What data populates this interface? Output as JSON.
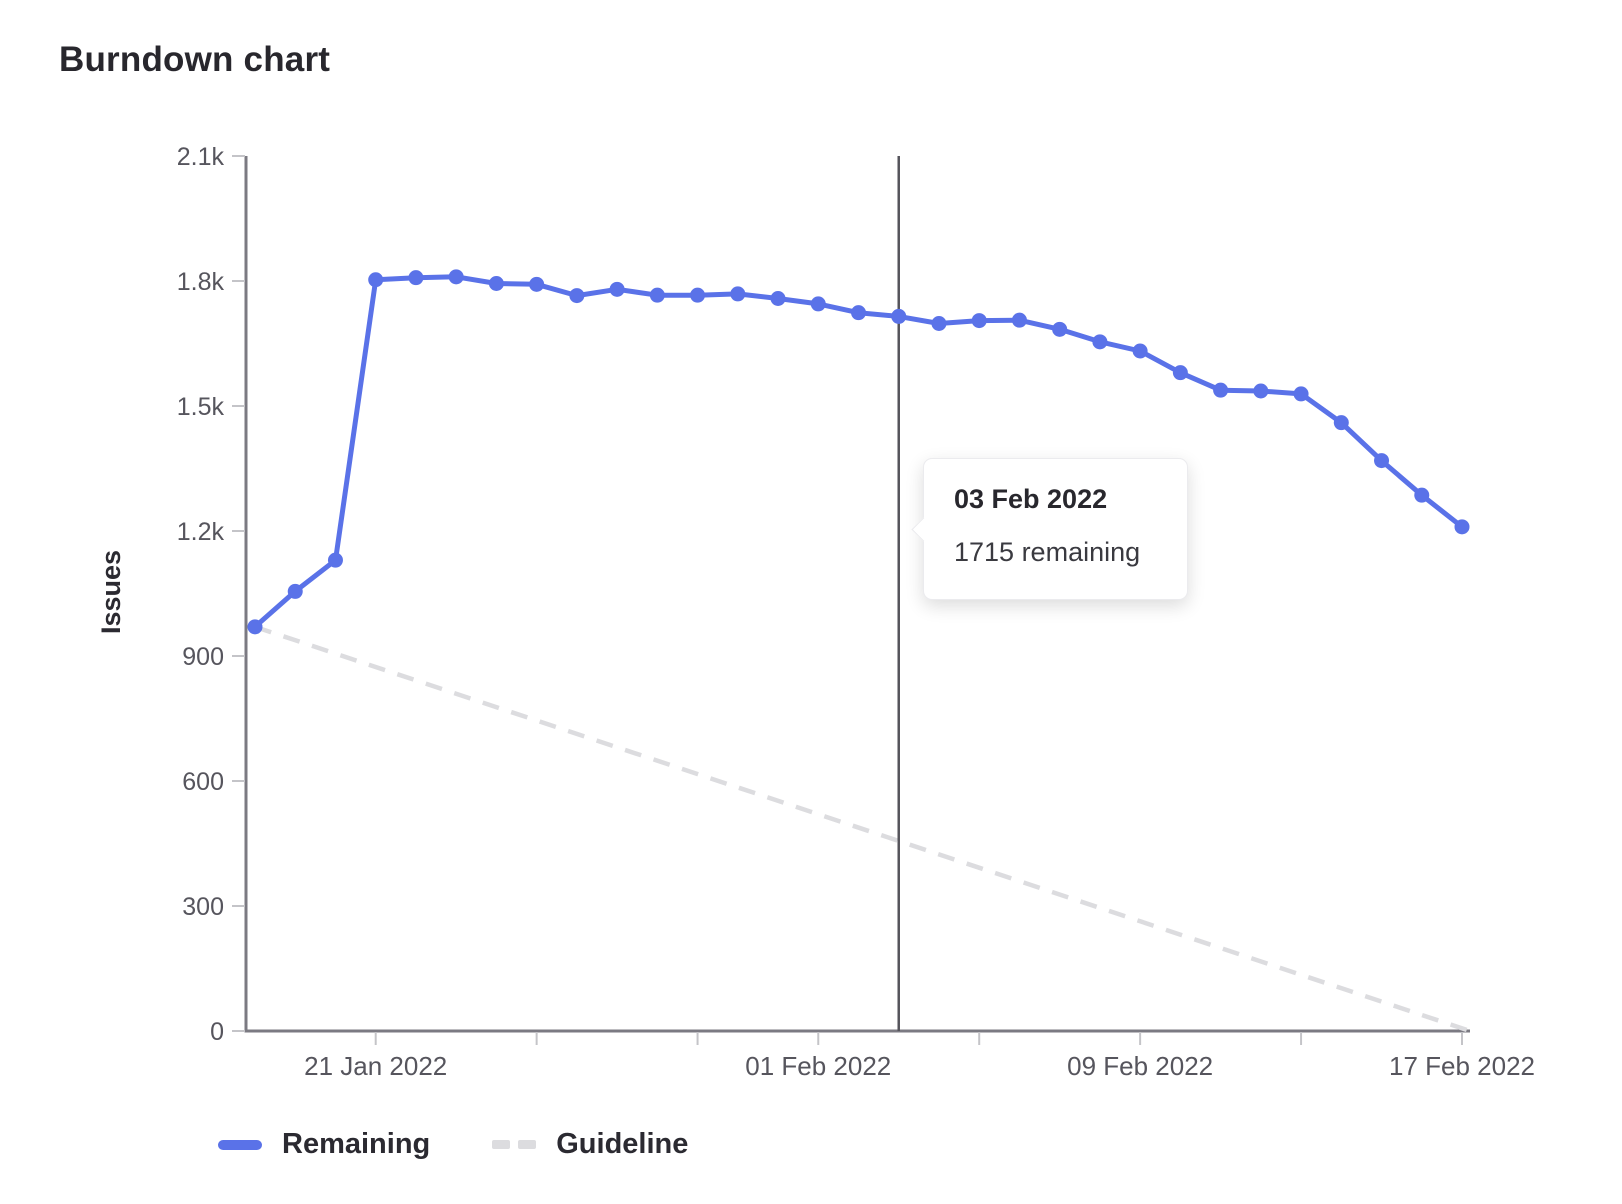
{
  "page": {
    "title": "Burndown chart"
  },
  "tooltip": {
    "title": "03 Feb 2022",
    "body": "1715 remaining"
  },
  "chart_data": {
    "type": "line",
    "title": "Burndown chart",
    "xlabel": "",
    "ylabel": "Issues",
    "ylim": [
      0,
      2100
    ],
    "grid": false,
    "legend_position": "bottom-left",
    "x": [
      "18 Jan 2022",
      "19 Jan 2022",
      "20 Jan 2022",
      "21 Jan 2022",
      "22 Jan 2022",
      "23 Jan 2022",
      "24 Jan 2022",
      "25 Jan 2022",
      "26 Jan 2022",
      "27 Jan 2022",
      "28 Jan 2022",
      "29 Jan 2022",
      "30 Jan 2022",
      "31 Jan 2022",
      "01 Feb 2022",
      "02 Feb 2022",
      "03 Feb 2022",
      "04 Feb 2022",
      "05 Feb 2022",
      "06 Feb 2022",
      "07 Feb 2022",
      "08 Feb 2022",
      "09 Feb 2022",
      "10 Feb 2022",
      "11 Feb 2022",
      "12 Feb 2022",
      "13 Feb 2022",
      "14 Feb 2022",
      "15 Feb 2022",
      "16 Feb 2022",
      "17 Feb 2022"
    ],
    "series": [
      {
        "name": "Remaining",
        "type": "line",
        "color": "#5a72e8",
        "values": [
          970,
          1055,
          1130,
          1803,
          1808,
          1810,
          1794,
          1792,
          1765,
          1780,
          1766,
          1766,
          1769,
          1758,
          1745,
          1724,
          1715,
          1698,
          1705,
          1706,
          1684,
          1654,
          1632,
          1580,
          1538,
          1536,
          1529,
          1460,
          1369,
          1286,
          1210
        ]
      },
      {
        "name": "Guideline",
        "type": "dashed-line",
        "color": "#dcdcdf",
        "start": {
          "date": "18 Jan 2022",
          "value": 970
        },
        "end": {
          "date": "17 Feb 2022",
          "value": 0
        }
      }
    ],
    "y_ticks": [
      {
        "value": 0,
        "label": "0"
      },
      {
        "value": 300,
        "label": "300"
      },
      {
        "value": 600,
        "label": "600"
      },
      {
        "value": 900,
        "label": "900"
      },
      {
        "value": 1200,
        "label": "1.2k"
      },
      {
        "value": 1500,
        "label": "1.5k"
      },
      {
        "value": 1800,
        "label": "1.8k"
      },
      {
        "value": 2100,
        "label": "2.1k"
      }
    ],
    "x_ticks": [
      {
        "index": 3,
        "label": "21 Jan 2022"
      },
      {
        "index": 7,
        "label": ""
      },
      {
        "index": 11,
        "label": ""
      },
      {
        "index": 14,
        "label": "01 Feb 2022"
      },
      {
        "index": 18,
        "label": ""
      },
      {
        "index": 22,
        "label": "09 Feb 2022"
      },
      {
        "index": 26,
        "label": ""
      },
      {
        "index": 30,
        "label": "17 Feb 2022"
      }
    ],
    "marker": {
      "index": 16,
      "date": "03 Feb 2022",
      "value": 1715
    },
    "legend": [
      {
        "label": "Remaining",
        "swatch": "solid",
        "color": "#5a72e8"
      },
      {
        "label": "Guideline",
        "swatch": "dashed",
        "color": "#dcdcdf"
      }
    ],
    "colors": {
      "axis": "#7b7a82",
      "tick": "#c4c4c8",
      "tick_label": "#56555d",
      "marker_line": "#55545b",
      "text": "#2b2a31"
    }
  }
}
